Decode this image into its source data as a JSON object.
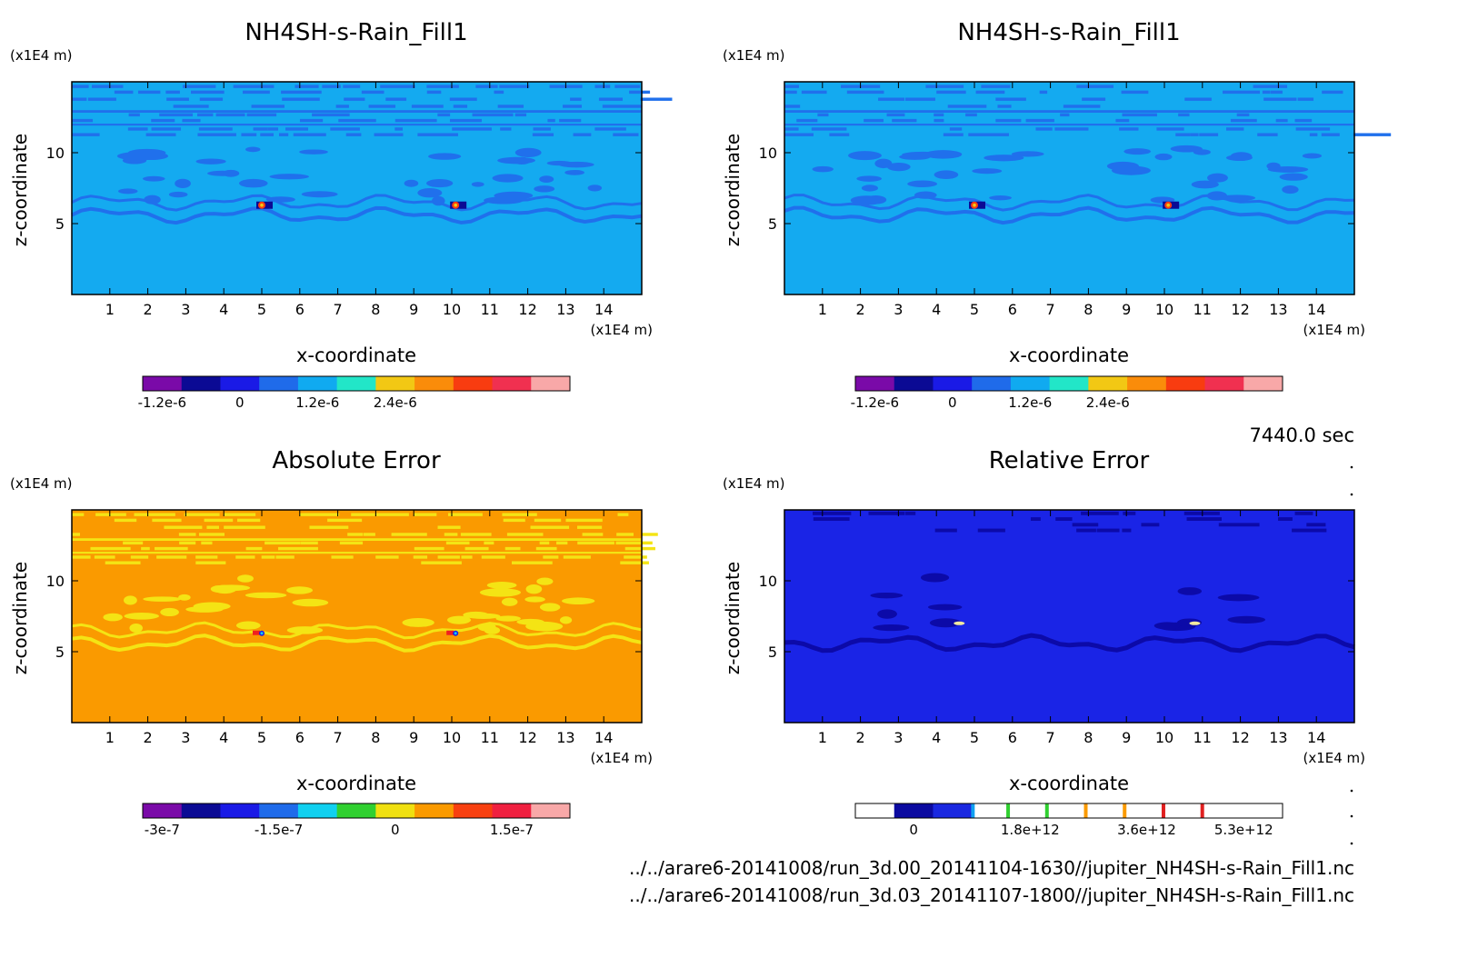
{
  "time_label": "7440.0 sec",
  "files": [
    "../../arare6-20141008/run_3d.00_20141104-1630//jupiter_NH4SH-s-Rain_Fill1.nc",
    "../../arare6-20141008/run_3d.03_20141107-1800//jupiter_NH4SH-s-Rain_Fill1.nc"
  ],
  "chart_data": [
    {
      "type": "heatmap",
      "title": "NH4SH-s-Rain_Fill1",
      "xlabel": "x-coordinate",
      "ylabel": "z-coordinate",
      "x_unit": "(x1E4 m)",
      "y_unit": "(x1E4 m)",
      "xlim": [
        0,
        15
      ],
      "ylim": [
        0,
        15
      ],
      "x_ticks": [
        1,
        2,
        3,
        4,
        5,
        6,
        7,
        8,
        9,
        10,
        11,
        12,
        13,
        14
      ],
      "y_ticks": [
        5,
        10
      ],
      "colorbar": {
        "colors": [
          "#7a0aa8",
          "#0b0a94",
          "#1a1ae6",
          "#1f6bea",
          "#10aaf0",
          "#22e6c8",
          "#f2c814",
          "#fa8c0a",
          "#f83c10",
          "#f03050",
          "#f8a8a8"
        ],
        "tick_labels": [
          "-1.2e-6",
          "0",
          "1.2e-6",
          "2.4e-6"
        ],
        "tick_positions": [
          0.5,
          2.5,
          4.5,
          6.5
        ]
      },
      "background_color": "#14aaf0",
      "pattern_color": "#2070ec",
      "blob_x": [
        5.0,
        10.1
      ],
      "blob_z": 6.3
    },
    {
      "type": "heatmap",
      "title": "NH4SH-s-Rain_Fill1",
      "xlabel": "x-coordinate",
      "ylabel": "z-coordinate",
      "x_unit": "(x1E4 m)",
      "y_unit": "(x1E4 m)",
      "xlim": [
        0,
        15
      ],
      "ylim": [
        0,
        15
      ],
      "x_ticks": [
        1,
        2,
        3,
        4,
        5,
        6,
        7,
        8,
        9,
        10,
        11,
        12,
        13,
        14
      ],
      "y_ticks": [
        5,
        10
      ],
      "colorbar": {
        "colors": [
          "#7a0aa8",
          "#0b0a94",
          "#1a1ae6",
          "#1f6bea",
          "#10aaf0",
          "#22e6c8",
          "#f2c814",
          "#fa8c0a",
          "#f83c10",
          "#f03050",
          "#f8a8a8"
        ],
        "tick_labels": [
          "-1.2e-6",
          "0",
          "1.2e-6",
          "2.4e-6"
        ],
        "tick_positions": [
          0.5,
          2.5,
          4.5,
          6.5
        ]
      },
      "background_color": "#14aaf0",
      "pattern_color": "#2070ec",
      "blob_x": [
        5.0,
        10.1
      ],
      "blob_z": 6.3
    },
    {
      "type": "heatmap",
      "title": "Absolute Error",
      "xlabel": "x-coordinate",
      "ylabel": "z-coordinate",
      "x_unit": "(x1E4 m)",
      "y_unit": "(x1E4 m)",
      "xlim": [
        0,
        15
      ],
      "ylim": [
        0,
        15
      ],
      "x_ticks": [
        1,
        2,
        3,
        4,
        5,
        6,
        7,
        8,
        9,
        10,
        11,
        12,
        13,
        14
      ],
      "y_ticks": [
        5,
        10
      ],
      "colorbar": {
        "colors": [
          "#7a0aa8",
          "#0b0a94",
          "#1a1ae6",
          "#1f6bea",
          "#10d0f0",
          "#30d030",
          "#f0e010",
          "#fa9a00",
          "#f84010",
          "#f02040",
          "#f8a8a8"
        ],
        "tick_labels": [
          "-3e-7",
          "-1.5e-7",
          "0",
          "1.5e-7"
        ],
        "tick_positions": [
          0.5,
          3.5,
          6.5,
          9.5
        ]
      },
      "background_color": "#fa9a00",
      "pattern_color": "#f4e414",
      "blob_x": [
        5.0,
        10.1
      ],
      "blob_z": 6.3
    },
    {
      "type": "heatmap",
      "title": "Relative Error",
      "xlabel": "x-coordinate",
      "ylabel": "z-coordinate",
      "x_unit": "(x1E4 m)",
      "y_unit": "(x1E4 m)",
      "xlim": [
        0,
        15
      ],
      "ylim": [
        0,
        15
      ],
      "x_ticks": [
        1,
        2,
        3,
        4,
        5,
        6,
        7,
        8,
        9,
        10,
        11,
        12,
        13,
        14
      ],
      "y_ticks": [
        5,
        10
      ],
      "colorbar": {
        "colors": [
          "#ffffff",
          "#0b0aa0",
          "#1a28e0",
          "#ffffff",
          "#ffffff",
          "#ffffff",
          "#ffffff",
          "#ffffff",
          "#ffffff",
          "#ffffff",
          "#ffffff"
        ],
        "tick_labels": [
          "0",
          "1.8e+12",
          "3.6e+12",
          "5.3e+12"
        ],
        "tick_positions": [
          1.5,
          4.5,
          7.5,
          10.0
        ],
        "line_colors": [
          "#10a0f0",
          "#30d030",
          "#30d030",
          "#fa9a00",
          "#fa9a00",
          "#e02020",
          "#e02020"
        ]
      },
      "background_color": "#1a24e6",
      "pattern_color": "#0c0aa8",
      "blob_x": [
        4.6,
        10.8
      ],
      "blob_z": 7.0
    }
  ]
}
